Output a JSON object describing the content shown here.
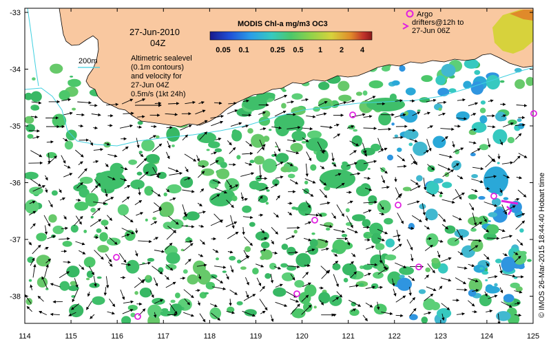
{
  "map": {
    "date": "27-Jun-2010",
    "time": "04Z",
    "colorbar_title": "MODIS Chl-a mg/m3 OC3",
    "colorbar_ticks": [
      "0.05",
      "0.1",
      "0.25",
      "0.5",
      "1",
      "2",
      "4"
    ],
    "colorbar_colors": [
      "#1a1a8c",
      "#1f4fd6",
      "#2a9de8",
      "#36c9c0",
      "#4cc76a",
      "#8fd24a",
      "#d7d23c",
      "#e08a2a",
      "#c0302a",
      "#8a1a1a"
    ],
    "contour_label": "200m",
    "legend_lines": [
      "Altimetric sealevel",
      "(0.1m contours)",
      "and velocity for",
      "27-Jun 04Z",
      "0.5m/s (1kt 24h)"
    ],
    "argo_lines": [
      "Argo",
      "drifters@12h to",
      "27-Jun 06Z"
    ],
    "credit": "© IMOS 26-Mar-2015 18:44:40 Hobart time",
    "x_ticks": [
      "114",
      "115",
      "116",
      "117",
      "118",
      "119",
      "120",
      "121",
      "122",
      "123",
      "124",
      "125"
    ],
    "y_ticks": [
      "-33",
      "-34",
      "-35",
      "-36",
      "-37",
      "-38"
    ],
    "colors": {
      "land": "#f9c8a0",
      "ocean": "#ffffff",
      "chl_mid": "#3fbf6a",
      "chl_low": "#2aa8d8",
      "argo": "#e020e0",
      "isobath": "#40d0e0"
    }
  }
}
